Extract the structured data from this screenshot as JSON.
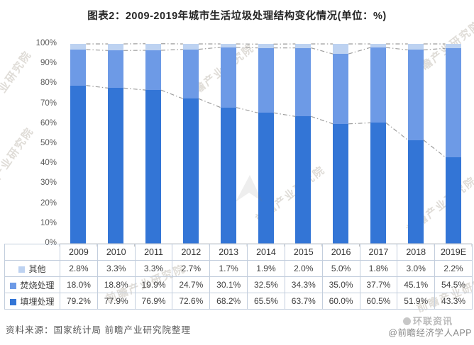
{
  "title": "图表2：2009-2019年城市生活垃圾处理结构变化情况(单位：%)",
  "chart_data": {
    "type": "bar",
    "stacked": true,
    "unit": "%",
    "title": "图表2：2009-2019年城市生活垃圾处理结构变化情况(单位：%)",
    "categories": [
      "2009",
      "2010",
      "2011",
      "2012",
      "2013",
      "2014",
      "2015",
      "2016",
      "2017",
      "2018",
      "2019E"
    ],
    "series": [
      {
        "name": "填埋处理",
        "color": "#3375d6",
        "values": [
          79.2,
          77.9,
          76.9,
          72.6,
          68.2,
          65.5,
          63.7,
          60.0,
          60.5,
          51.9,
          43.3
        ]
      },
      {
        "name": "焚烧处理",
        "color": "#6d9ae6",
        "values": [
          18.0,
          18.8,
          19.9,
          24.7,
          30.1,
          32.5,
          34.3,
          35.0,
          37.7,
          45.1,
          54.5
        ]
      },
      {
        "name": "其他",
        "color": "#bdd2f1",
        "values": [
          2.8,
          3.3,
          3.3,
          2.7,
          1.7,
          1.9,
          2.0,
          5.0,
          1.8,
          3.0,
          2.2
        ]
      }
    ],
    "ylim": [
      0,
      100
    ],
    "ytick_step": 10,
    "ytick_labels": [
      "0%",
      "10%",
      "20%",
      "30%",
      "40%",
      "50%",
      "60%",
      "70%",
      "80%",
      "90%",
      "100%"
    ],
    "grid": false,
    "series_line_color": "#9e9e9e",
    "series_line_style": "dash-dot",
    "legend_position": "table-row-labels"
  },
  "table": {
    "columns": [
      "2009",
      "2010",
      "2011",
      "2012",
      "2013",
      "2014",
      "2015",
      "2016",
      "2017",
      "2018",
      "2019E"
    ],
    "rows": [
      {
        "label": "其他",
        "values": [
          "2.8%",
          "3.3%",
          "3.3%",
          "2.7%",
          "1.7%",
          "1.9%",
          "2.0%",
          "5.0%",
          "1.8%",
          "3.0%",
          "2.2%"
        ]
      },
      {
        "label": "焚烧处理",
        "values": [
          "18.0%",
          "18.8%",
          "19.9%",
          "24.7%",
          "30.1%",
          "32.5%",
          "34.3%",
          "35.0%",
          "37.7%",
          "45.1%",
          "54.5%"
        ]
      },
      {
        "label": "填埋处理",
        "values": [
          "79.2%",
          "77.9%",
          "76.9%",
          "72.6%",
          "68.2%",
          "65.5%",
          "63.7%",
          "60.0%",
          "60.5%",
          "51.9%",
          "43.3%"
        ]
      }
    ]
  },
  "footer": {
    "source": "资料来源：国家统计局 前瞻产业研究院整理",
    "credit": "@前瞻经济学人APP"
  },
  "watermarks": {
    "diagonal_text": "前瞻产业研究院",
    "corner_text": "环联资讯"
  }
}
